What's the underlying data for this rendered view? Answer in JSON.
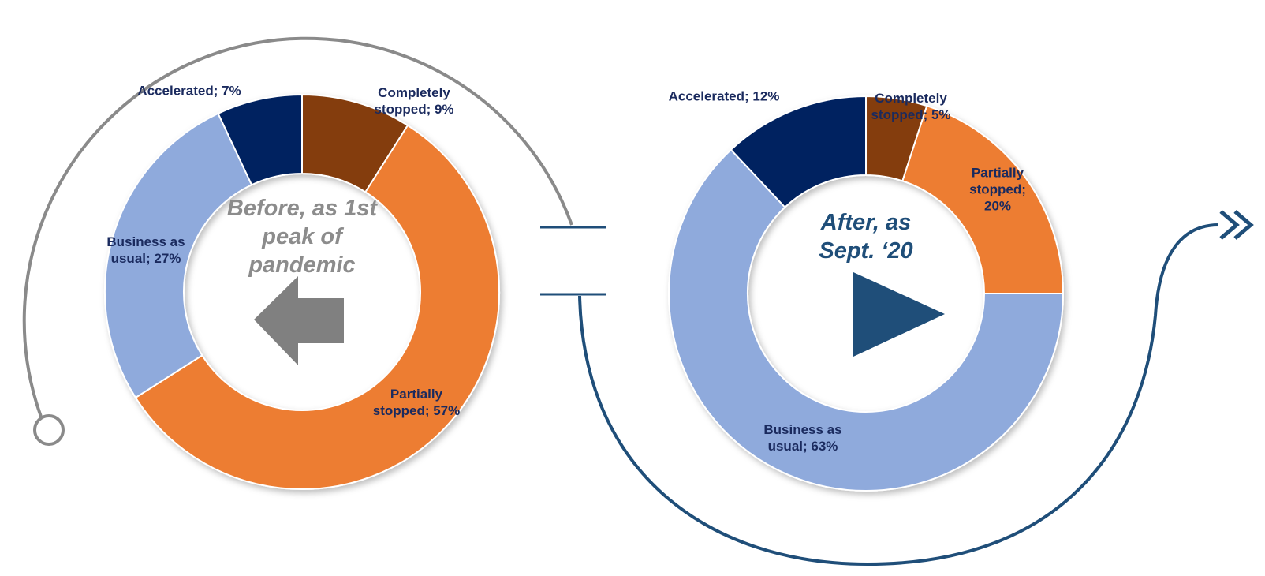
{
  "chart_data": [
    {
      "type": "pie",
      "donut": true,
      "title": "Before, as 1st peak of pandemic",
      "categories": [
        "Completely stopped",
        "Partially stopped",
        "Business as usual",
        "Accelerated"
      ],
      "values": [
        9,
        57,
        27,
        7
      ],
      "value_labels": [
        "Completely stopped; 9%",
        "Partially stopped; 57%",
        "Business as usual; 27%",
        "Accelerated; 7%"
      ],
      "colors": [
        "#843c0c",
        "#ed7d31",
        "#8faadc",
        "#002060"
      ]
    },
    {
      "type": "pie",
      "donut": true,
      "title": "After, as Sept. ‘20",
      "categories": [
        "Completely stopped",
        "Partially stopped",
        "Business as usual",
        "Accelerated"
      ],
      "values": [
        5,
        20,
        63,
        12
      ],
      "value_labels": [
        "Completely stopped; 5%",
        "Partially stopped; 20%",
        "Business as usual; 63%",
        "Accelerated; 12%"
      ],
      "colors": [
        "#843c0c",
        "#ed7d31",
        "#8faadc",
        "#002060"
      ]
    }
  ]
}
